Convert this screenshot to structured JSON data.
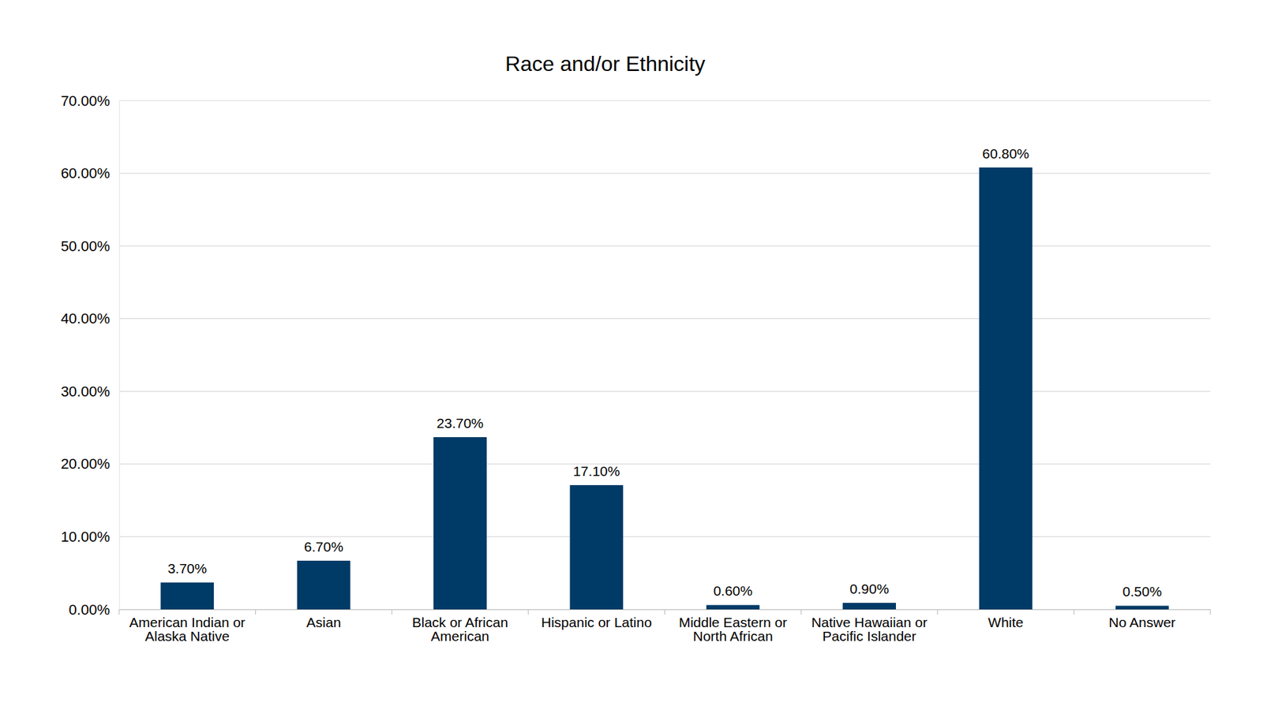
{
  "chart_data": {
    "type": "bar",
    "title": "Race and/or Ethnicity",
    "categories": [
      "American Indian or Alaska Native",
      "Asian",
      "Black or African American",
      "Hispanic or Latino",
      "Middle Eastern or North African",
      "Native Hawaiian or Pacific Islander",
      "White",
      "No Answer"
    ],
    "values": [
      3.7,
      6.7,
      23.7,
      17.1,
      0.6,
      0.9,
      60.8,
      0.5
    ],
    "value_labels": [
      "3.70%",
      "6.70%",
      "23.70%",
      "17.10%",
      "0.60%",
      "0.90%",
      "60.80%",
      "0.50%"
    ],
    "color": "#003a66",
    "ylim": [
      0,
      70
    ],
    "yticks": [
      {
        "value": 0,
        "label": "0.00%"
      },
      {
        "value": 10,
        "label": "10.00%"
      },
      {
        "value": 20,
        "label": "20.00%"
      },
      {
        "value": 30,
        "label": "30.00%"
      },
      {
        "value": 40,
        "label": "40.00%"
      },
      {
        "value": 50,
        "label": "50.00%"
      },
      {
        "value": 60,
        "label": "60.00%"
      },
      {
        "value": 70,
        "label": "70.00%"
      }
    ],
    "grid": true,
    "data_labels": true
  }
}
